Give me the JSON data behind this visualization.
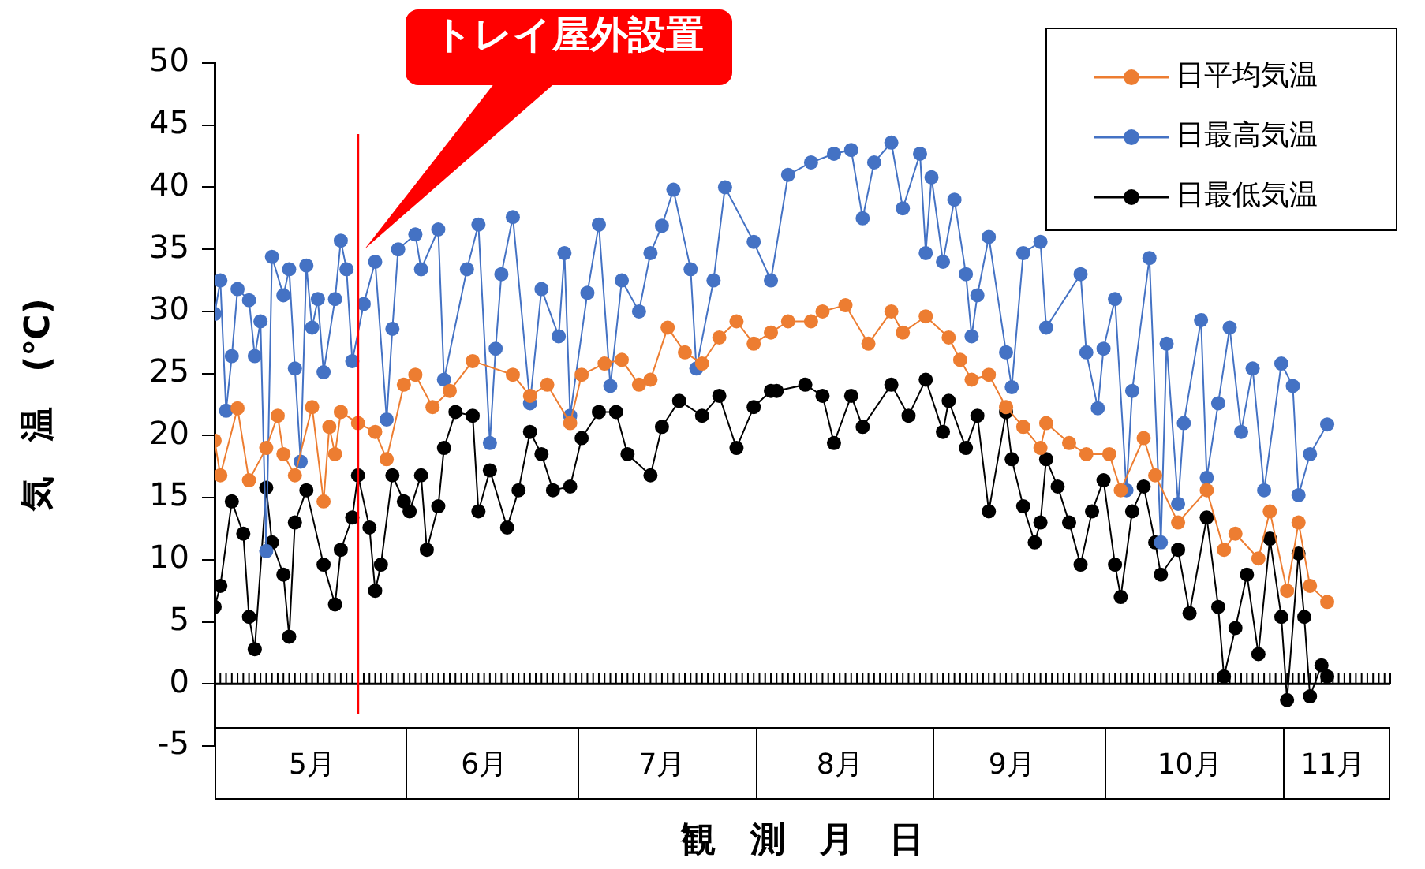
{
  "chart_data": {
    "type": "line",
    "xlabel": "観　測　月　日",
    "ylabel": "気　温　(℃)",
    "xlim": [
      "--04-29",
      "--11-20"
    ],
    "xticks": [
      {
        "value": "--05-16",
        "label": "5月"
      },
      {
        "value": "--06-01",
        "label": null
      },
      {
        "value": "--06-15",
        "label": "6月"
      },
      {
        "value": "--07-01",
        "label": null
      },
      {
        "value": "--07-16",
        "label": "7月"
      },
      {
        "value": "--08-01",
        "label": null
      },
      {
        "value": "--08-16",
        "label": "8月"
      },
      {
        "value": "--09-01",
        "label": null
      },
      {
        "value": "--09-15",
        "label": "9月"
      },
      {
        "value": "--10-01",
        "label": null
      },
      {
        "value": "--10-16",
        "label": "10月"
      },
      {
        "value": "--11-01",
        "label": null
      },
      {
        "value": "--11-10",
        "label": "11月"
      }
    ],
    "ylim": [
      -5,
      50
    ],
    "yticks": [
      -5,
      0,
      5,
      10,
      15,
      20,
      25,
      30,
      35,
      40,
      45,
      50
    ],
    "grid": false,
    "legend": "top right",
    "marker": "circle",
    "line_style": "solid",
    "ref_lines": [
      {
        "axis": "x",
        "value": "--05-24",
        "label": "トレイ屋外設置",
        "color": "#ff0000"
      }
    ],
    "series": [
      {
        "name": "日平均気温",
        "color": "#ed7d31",
        "x": [
          "--04-29",
          "--04-30",
          "--05-03",
          "--05-05",
          "--05-08",
          "--05-10",
          "--05-11",
          "--05-13",
          "--05-16",
          "--05-18",
          "--05-19",
          "--05-20",
          "--05-21",
          "--05-24",
          "--05-27",
          "--05-29",
          "--06-01",
          "--06-03",
          "--06-06",
          "--06-09",
          "--06-13",
          "--06-20",
          "--06-23",
          "--06-26",
          "--06-30",
          "--07-02",
          "--07-06",
          "--07-09",
          "--07-12",
          "--07-14",
          "--07-17",
          "--07-20",
          "--07-23",
          "--07-26",
          "--07-29",
          "--08-01",
          "--08-04",
          "--08-07",
          "--08-11",
          "--08-13",
          "--08-17",
          "--08-21",
          "--08-25",
          "--08-27",
          "--08-31",
          "--09-04",
          "--09-06",
          "--09-08",
          "--09-11",
          "--09-14",
          "--09-17",
          "--09-20",
          "--09-21",
          "--09-25",
          "--09-28",
          "--10-02",
          "--10-04",
          "--10-08",
          "--10-10",
          "--10-14",
          "--10-19",
          "--10-22",
          "--10-24",
          "--10-28",
          "--10-30",
          "--11-02",
          "--11-04",
          "--11-06",
          "--11-09"
        ],
        "values": [
          19.6,
          16.8,
          22.2,
          16.4,
          19,
          21.6,
          18.5,
          16.8,
          22.3,
          14.7,
          20.7,
          18.5,
          21.9,
          21,
          20.3,
          18.1,
          24.1,
          24.9,
          22.3,
          23.6,
          26,
          24.9,
          23.2,
          24.1,
          21,
          24.9,
          25.8,
          26.1,
          24.1,
          24.5,
          28.7,
          26.7,
          25.8,
          27.9,
          29.2,
          27.4,
          28.3,
          29.2,
          29.2,
          30,
          30.5,
          27.4,
          30,
          28.3,
          29.6,
          27.9,
          26.1,
          24.5,
          24.9,
          22.3,
          20.7,
          19,
          21,
          19.4,
          18.5,
          18.5,
          15.6,
          19.8,
          16.8,
          13,
          15.6,
          10.8,
          12.1,
          10.1,
          13.9,
          7.5,
          13,
          7.9,
          6.6
        ]
      },
      {
        "name": "日最高気温",
        "color": "#4472c4",
        "x": [
          "--04-29",
          "--04-30",
          "--05-01",
          "--05-02",
          "--05-03",
          "--05-05",
          "--05-06",
          "--05-07",
          "--05-08",
          "--05-09",
          "--05-11",
          "--05-12",
          "--05-13",
          "--05-14",
          "--05-15",
          "--05-16",
          "--05-17",
          "--05-18",
          "--05-20",
          "--05-21",
          "--05-22",
          "--05-23",
          "--05-25",
          "--05-27",
          "--05-29",
          "--05-30",
          "--05-31",
          "--06-03",
          "--06-04",
          "--06-07",
          "--06-08",
          "--06-12",
          "--06-14",
          "--06-16",
          "--06-17",
          "--06-18",
          "--06-20",
          "--06-23",
          "--06-25",
          "--06-28",
          "--06-29",
          "--06-30",
          "--07-03",
          "--07-05",
          "--07-07",
          "--07-09",
          "--07-12",
          "--07-14",
          "--07-16",
          "--07-18",
          "--07-21",
          "--07-22",
          "--07-25",
          "--07-27",
          "--08-01",
          "--08-04",
          "--08-07",
          "--08-11",
          "--08-15",
          "--08-18",
          "--08-20",
          "--08-22",
          "--08-25",
          "--08-27",
          "--08-30",
          "--08-31",
          "--09-01",
          "--09-03",
          "--09-05",
          "--09-07",
          "--09-08",
          "--09-09",
          "--09-11",
          "--09-14",
          "--09-15",
          "--09-17",
          "--09-20",
          "--09-21",
          "--09-27",
          "--09-28",
          "--09-30",
          "--10-01",
          "--10-03",
          "--10-05",
          "--10-06",
          "--10-09",
          "--10-11",
          "--10-12",
          "--10-14",
          "--10-15",
          "--10-18",
          "--10-19",
          "--10-21",
          "--10-23",
          "--10-25",
          "--10-27",
          "--10-29",
          "--11-01",
          "--11-03",
          "--11-04",
          "--11-06",
          "--11-09"
        ],
        "values": [
          29.8,
          32.5,
          22,
          26.4,
          31.8,
          30.9,
          26.4,
          29.2,
          10.7,
          34.4,
          31.3,
          33.4,
          25.4,
          17.9,
          33.7,
          28.7,
          31,
          25.1,
          31,
          35.7,
          33.4,
          26,
          30.6,
          34,
          21.3,
          28.6,
          35,
          36.2,
          33.4,
          36.6,
          24.5,
          33.4,
          37,
          19.4,
          27,
          33,
          37.6,
          22.6,
          31.8,
          28,
          34.7,
          21.6,
          31.5,
          37,
          24,
          32.5,
          30,
          34.7,
          36.9,
          39.8,
          33.4,
          25.4,
          32.5,
          40,
          35.6,
          32.5,
          41,
          42,
          42.7,
          43,
          37.5,
          42,
          43.6,
          38.3,
          42.7,
          34.7,
          40.8,
          34,
          39,
          33,
          28,
          31.3,
          36,
          26.7,
          23.9,
          34.7,
          35.6,
          28.7,
          33,
          26.7,
          22.2,
          27,
          31,
          15.6,
          23.6,
          34.3,
          11.4,
          27.4,
          14.5,
          21,
          29.3,
          16.6,
          22.6,
          28.7,
          20.3,
          25.4,
          15.6,
          25.8,
          24,
          15.2,
          18.5,
          20.9
        ]
      },
      {
        "name": "日最低気温",
        "color": "#000000",
        "x": [
          "--04-29",
          "--04-30",
          "--05-02",
          "--05-04",
          "--05-05",
          "--05-06",
          "--05-08",
          "--05-09",
          "--05-11",
          "--05-12",
          "--05-13",
          "--05-15",
          "--05-18",
          "--05-20",
          "--05-21",
          "--05-23",
          "--05-24",
          "--05-26",
          "--05-27",
          "--05-28",
          "--05-30",
          "--06-01",
          "--06-02",
          "--06-04",
          "--06-05",
          "--06-07",
          "--06-08",
          "--06-10",
          "--06-13",
          "--06-14",
          "--06-16",
          "--06-19",
          "--06-21",
          "--06-23",
          "--06-25",
          "--06-27",
          "--06-30",
          "--07-02",
          "--07-05",
          "--07-08",
          "--07-10",
          "--07-14",
          "--07-16",
          "--07-19",
          "--07-23",
          "--07-26",
          "--07-29",
          "--08-01",
          "--08-04",
          "--08-05",
          "--08-10",
          "--08-13",
          "--08-15",
          "--08-18",
          "--08-20",
          "--08-25",
          "--08-28",
          "--08-31",
          "--09-03",
          "--09-04",
          "--09-07",
          "--09-09",
          "--09-11",
          "--09-14",
          "--09-15",
          "--09-17",
          "--09-19",
          "--09-20",
          "--09-21",
          "--09-23",
          "--09-25",
          "--09-27",
          "--09-29",
          "--10-01",
          "--10-03",
          "--10-04",
          "--10-06",
          "--10-08",
          "--10-10",
          "--10-11",
          "--10-14",
          "--10-16",
          "--10-19",
          "--10-21",
          "--10-22",
          "--10-24",
          "--10-26",
          "--10-28",
          "--10-30",
          "--11-01",
          "--11-02",
          "--11-04",
          "--11-05",
          "--11-06",
          "--11-08",
          "--11-09"
        ],
        "values": [
          6.2,
          7.9,
          14.7,
          12.1,
          5.4,
          2.8,
          15.8,
          11.4,
          8.8,
          3.8,
          13,
          15.6,
          9.6,
          6.4,
          10.8,
          13.4,
          16.8,
          12.6,
          7.5,
          9.6,
          16.8,
          14.7,
          13.9,
          16.8,
          10.8,
          14.3,
          19,
          21.9,
          21.6,
          13.9,
          17.2,
          12.6,
          15.6,
          20.3,
          18.5,
          15.6,
          15.9,
          19.8,
          21.9,
          21.9,
          18.5,
          16.8,
          20.7,
          22.8,
          21.6,
          23.2,
          19,
          22.3,
          23.6,
          23.6,
          24.1,
          23.2,
          19.4,
          23.2,
          20.7,
          24.1,
          21.6,
          24.5,
          20.3,
          22.8,
          19,
          21.6,
          13.9,
          21.9,
          18.1,
          14.3,
          11.4,
          13,
          18.1,
          15.9,
          13,
          9.6,
          13.9,
          16.4,
          9.6,
          7,
          13.9,
          15.9,
          11.4,
          8.8,
          10.8,
          5.7,
          13.4,
          6.2,
          0.6,
          4.5,
          8.8,
          2.4,
          11.7,
          5.4,
          -1.3,
          10.5,
          5.4,
          -1,
          1.5,
          0.6
        ]
      }
    ]
  }
}
